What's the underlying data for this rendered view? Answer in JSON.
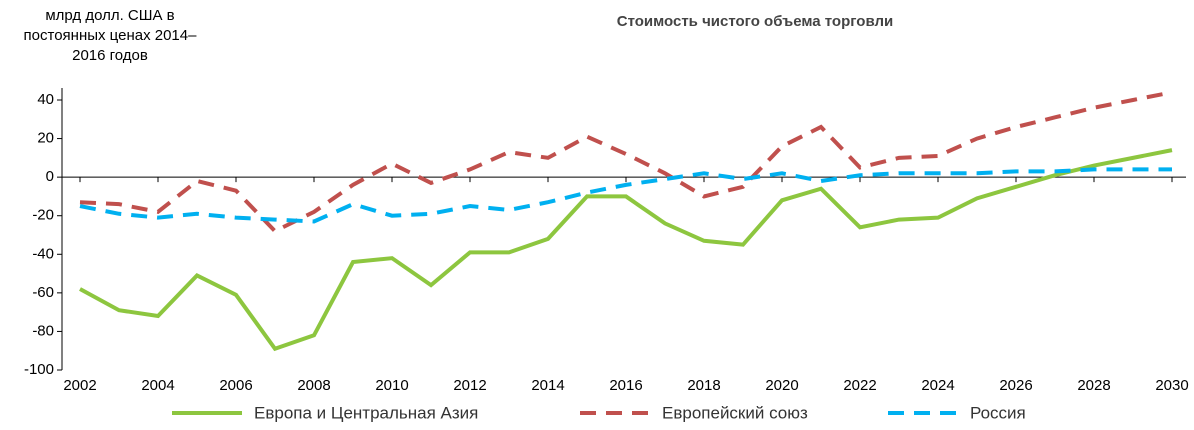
{
  "chart_data": {
    "type": "line",
    "title": "Стоимость чистого объема торговли",
    "y_label": [
      "млрд долл. США в",
      "постоянных ценах 2014–",
      "2016 годов"
    ],
    "x": [
      2002,
      2003,
      2004,
      2005,
      2006,
      2007,
      2008,
      2009,
      2010,
      2011,
      2012,
      2013,
      2014,
      2015,
      2016,
      2017,
      2018,
      2019,
      2020,
      2021,
      2022,
      2023,
      2024,
      2025,
      2026,
      2027,
      2028,
      2029,
      2030
    ],
    "xlim": [
      2002,
      2030
    ],
    "xticks": [
      2002,
      2004,
      2006,
      2008,
      2010,
      2012,
      2014,
      2016,
      2018,
      2020,
      2022,
      2024,
      2026,
      2028,
      2030
    ],
    "ylim": [
      -100,
      40
    ],
    "yticks": [
      -100,
      -80,
      -60,
      -40,
      -20,
      0,
      20,
      40
    ],
    "series": [
      {
        "name": "Европа и Центральная Азия",
        "color": "#8dc63f",
        "dash": "solid",
        "values": [
          -58,
          -69,
          -72,
          -51,
          -61,
          -89,
          -82,
          -44,
          -42,
          -56,
          -39,
          -39,
          -32,
          -10,
          -10,
          -24,
          -33,
          -35,
          -12,
          -6,
          -26,
          -22,
          -21,
          -11,
          -5,
          1,
          6,
          10,
          14
        ]
      },
      {
        "name": "Европейский союз",
        "color": "#c0504d",
        "dash": "dashed",
        "values": [
          -13,
          -14,
          -18,
          -2,
          -7,
          -28,
          -18,
          -4,
          7,
          -3,
          4,
          13,
          10,
          21,
          12,
          2,
          -10,
          -5,
          16,
          26,
          5,
          10,
          11,
          20,
          26,
          31,
          36,
          40,
          44
        ]
      },
      {
        "name": "Россия",
        "color": "#00b0f0",
        "dash": "dashed",
        "values": [
          -15,
          -19,
          -21,
          -19,
          -21,
          -22,
          -23,
          -14,
          -20,
          -19,
          -15,
          -17,
          -13,
          -8,
          -4,
          -1,
          2,
          -1,
          2,
          -2,
          1,
          2,
          2,
          2,
          3,
          3,
          4,
          4,
          4
        ]
      }
    ]
  }
}
